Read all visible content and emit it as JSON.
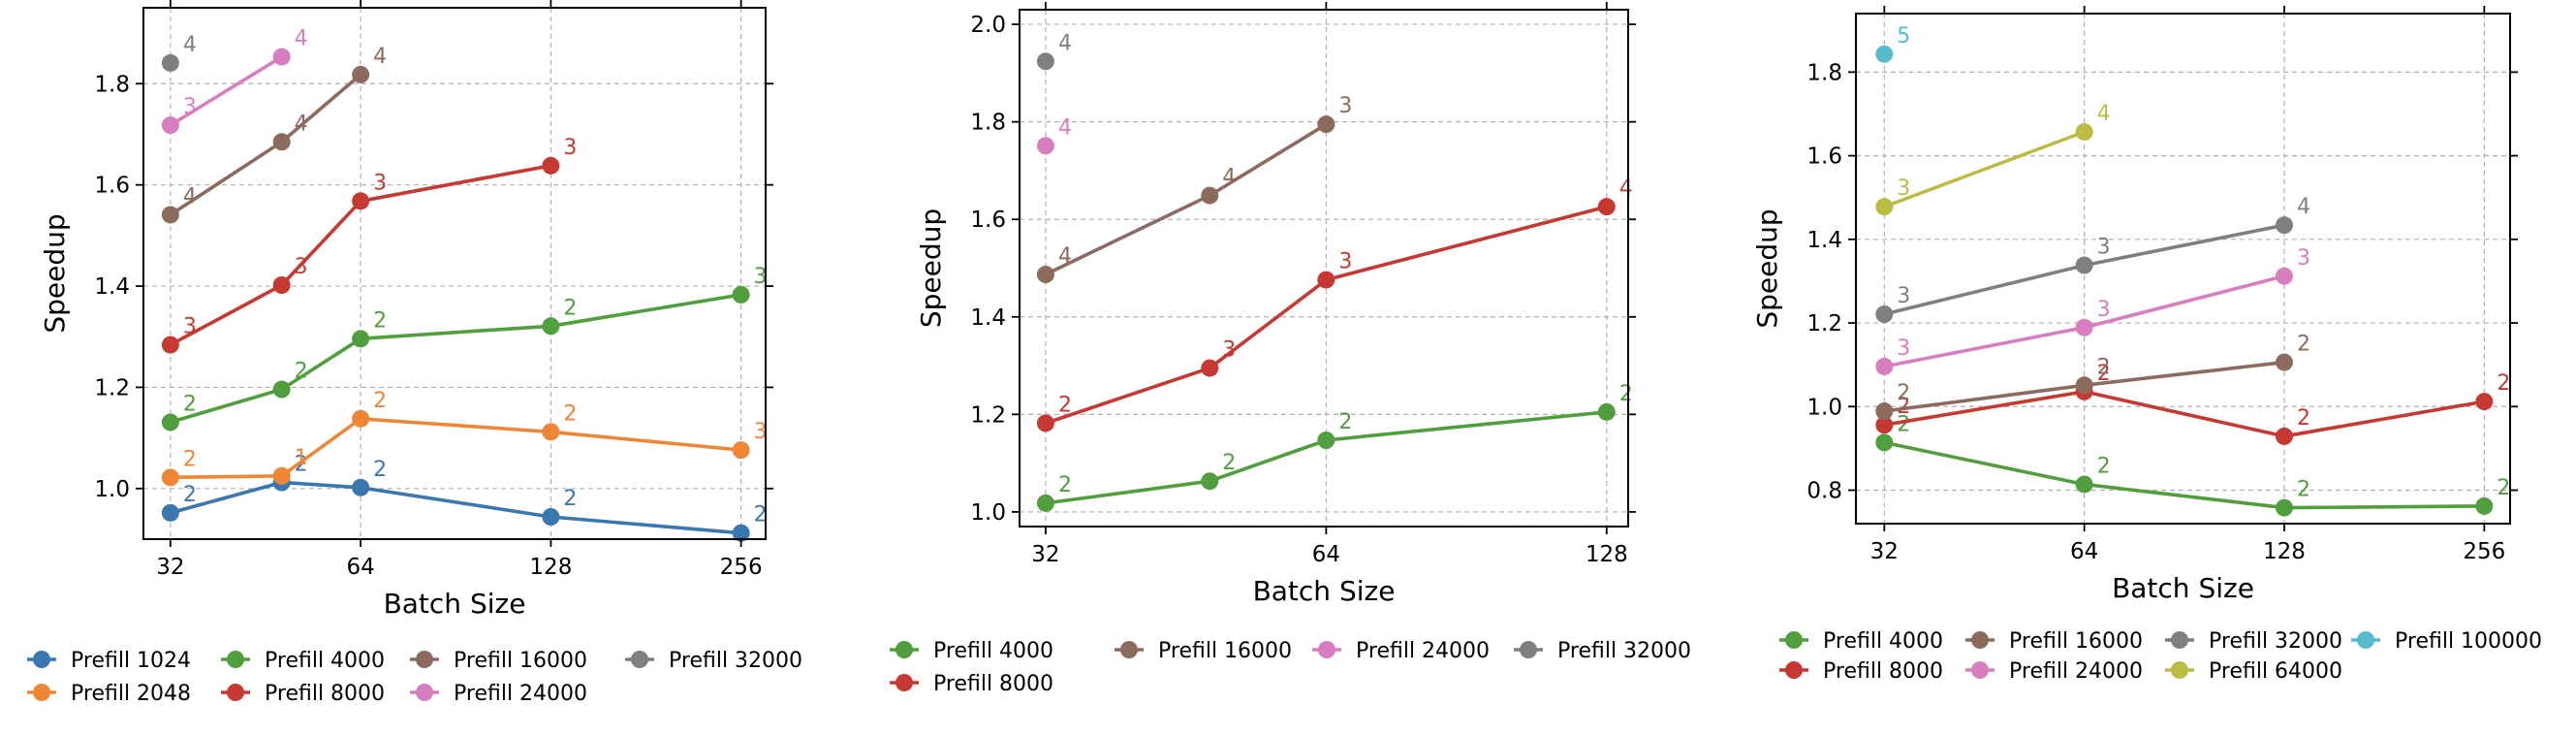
{
  "colors": {
    "prefill_1024": "#3a76af",
    "prefill_2048": "#ef8636",
    "prefill_4000": "#519e3e",
    "prefill_8000": "#c53932",
    "prefill_16000": "#8d6a5e",
    "prefill_24000": "#d67ec0",
    "prefill_32000": "#7f7f7f",
    "prefill_64000": "#bcbc45",
    "prefill_100000": "#58bbcc"
  },
  "chart_data": [
    {
      "type": "line",
      "xscale": "log2",
      "xlabel": "Batch Size",
      "ylabel": "Speedup",
      "xticks": [
        "32",
        "64",
        "128",
        "256"
      ],
      "yticks": [
        "1.0",
        "1.2",
        "1.4",
        "1.6",
        "1.8"
      ],
      "xlim": [
        29,
        280
      ],
      "ylim": [
        0.9,
        1.95
      ],
      "grid": true,
      "legend_position": "bottom",
      "series": [
        {
          "name": "Prefill 1024",
          "color_key": "prefill_1024",
          "points": [
            {
              "x": 32,
              "y": 0.952,
              "label": "2"
            },
            {
              "x": 48,
              "y": 1.012,
              "label": "2"
            },
            {
              "x": 64,
              "y": 1.002,
              "label": "2"
            },
            {
              "x": 128,
              "y": 0.944,
              "label": "2"
            },
            {
              "x": 256,
              "y": 0.912,
              "label": "2"
            }
          ]
        },
        {
          "name": "Prefill 2048",
          "color_key": "prefill_2048",
          "points": [
            {
              "x": 32,
              "y": 1.022,
              "label": "2"
            },
            {
              "x": 48,
              "y": 1.025,
              "label": "1"
            },
            {
              "x": 64,
              "y": 1.138,
              "label": "2"
            },
            {
              "x": 128,
              "y": 1.112,
              "label": "2"
            },
            {
              "x": 256,
              "y": 1.076,
              "label": "3"
            }
          ]
        },
        {
          "name": "Prefill 4000",
          "color_key": "prefill_4000",
          "points": [
            {
              "x": 32,
              "y": 1.131,
              "label": "2"
            },
            {
              "x": 48,
              "y": 1.196,
              "label": "2"
            },
            {
              "x": 64,
              "y": 1.296,
              "label": "2"
            },
            {
              "x": 128,
              "y": 1.321,
              "label": "2"
            },
            {
              "x": 256,
              "y": 1.383,
              "label": "3"
            }
          ]
        },
        {
          "name": "Prefill 8000",
          "color_key": "prefill_8000",
          "points": [
            {
              "x": 32,
              "y": 1.284,
              "label": "3"
            },
            {
              "x": 48,
              "y": 1.402,
              "label": "3"
            },
            {
              "x": 64,
              "y": 1.568,
              "label": "3"
            },
            {
              "x": 128,
              "y": 1.638,
              "label": "3"
            }
          ]
        },
        {
          "name": "Prefill 16000",
          "color_key": "prefill_16000",
          "points": [
            {
              "x": 32,
              "y": 1.541,
              "label": "4"
            },
            {
              "x": 48,
              "y": 1.685,
              "label": "4"
            },
            {
              "x": 64,
              "y": 1.818,
              "label": "4"
            }
          ]
        },
        {
          "name": "Prefill 24000",
          "color_key": "prefill_24000",
          "points": [
            {
              "x": 32,
              "y": 1.718,
              "label": "3"
            },
            {
              "x": 48,
              "y": 1.853,
              "label": "4"
            }
          ]
        },
        {
          "name": "Prefill 32000",
          "color_key": "prefill_32000",
          "points": [
            {
              "x": 32,
              "y": 1.841,
              "label": "4"
            }
          ]
        }
      ]
    },
    {
      "type": "line",
      "xscale": "log2",
      "xlabel": "Batch Size",
      "ylabel": "Speedup",
      "xticks": [
        "32",
        "64",
        "128"
      ],
      "yticks": [
        "1.0",
        "1.2",
        "1.4",
        "1.6",
        "1.8",
        "2.0"
      ],
      "xlim": [
        30,
        135
      ],
      "ylim": [
        0.97,
        2.03
      ],
      "grid": true,
      "legend_position": "bottom",
      "series": [
        {
          "name": "Prefill 4000",
          "color_key": "prefill_4000",
          "points": [
            {
              "x": 32,
              "y": 1.018,
              "label": "2"
            },
            {
              "x": 48,
              "y": 1.063,
              "label": "2"
            },
            {
              "x": 64,
              "y": 1.147,
              "label": "2"
            },
            {
              "x": 128,
              "y": 1.205,
              "label": "2"
            }
          ]
        },
        {
          "name": "Prefill 16000",
          "color_key": "prefill_16000",
          "points": [
            {
              "x": 32,
              "y": 1.487,
              "label": "4"
            },
            {
              "x": 48,
              "y": 1.649,
              "label": "4"
            },
            {
              "x": 64,
              "y": 1.795,
              "label": "3"
            }
          ]
        },
        {
          "name": "Prefill 24000",
          "color_key": "prefill_24000",
          "points": [
            {
              "x": 32,
              "y": 1.751,
              "label": "4"
            }
          ]
        },
        {
          "name": "Prefill 32000",
          "color_key": "prefill_32000",
          "points": [
            {
              "x": 32,
              "y": 1.924,
              "label": "4"
            }
          ]
        },
        {
          "name": "Prefill 8000",
          "color_key": "prefill_8000",
          "points": [
            {
              "x": 32,
              "y": 1.182,
              "label": "2"
            },
            {
              "x": 48,
              "y": 1.295,
              "label": "3"
            },
            {
              "x": 64,
              "y": 1.476,
              "label": "3"
            },
            {
              "x": 128,
              "y": 1.626,
              "label": "4"
            }
          ]
        }
      ]
    },
    {
      "type": "line",
      "xscale": "log2",
      "xlabel": "Batch Size",
      "ylabel": "Speedup",
      "xticks": [
        "32",
        "64",
        "128",
        "256"
      ],
      "yticks": [
        "0.8",
        "1.0",
        "1.2",
        "1.4",
        "1.6",
        "1.8"
      ],
      "xlim": [
        29,
        280
      ],
      "ylim": [
        0.72,
        1.94
      ],
      "grid": true,
      "legend_position": "bottom",
      "series": [
        {
          "name": "Prefill 4000",
          "color_key": "prefill_4000",
          "points": [
            {
              "x": 32,
              "y": 0.914,
              "label": "2"
            },
            {
              "x": 64,
              "y": 0.814,
              "label": "2"
            },
            {
              "x": 128,
              "y": 0.758,
              "label": "2"
            },
            {
              "x": 256,
              "y": 0.762,
              "label": "2"
            }
          ]
        },
        {
          "name": "Prefill 8000",
          "color_key": "prefill_8000",
          "points": [
            {
              "x": 32,
              "y": 0.956,
              "label": "2"
            },
            {
              "x": 64,
              "y": 1.036,
              "label": "2"
            },
            {
              "x": 128,
              "y": 0.929,
              "label": "2"
            },
            {
              "x": 256,
              "y": 1.012,
              "label": "2"
            }
          ]
        },
        {
          "name": "Prefill 16000",
          "color_key": "prefill_16000",
          "points": [
            {
              "x": 32,
              "y": 0.989,
              "label": "2"
            },
            {
              "x": 64,
              "y": 1.051,
              "label": "2"
            },
            {
              "x": 128,
              "y": 1.106,
              "label": "2"
            }
          ]
        },
        {
          "name": "Prefill 24000",
          "color_key": "prefill_24000",
          "points": [
            {
              "x": 32,
              "y": 1.096,
              "label": "3"
            },
            {
              "x": 64,
              "y": 1.189,
              "label": "3"
            },
            {
              "x": 128,
              "y": 1.312,
              "label": "3"
            }
          ]
        },
        {
          "name": "Prefill 32000",
          "color_key": "prefill_32000",
          "points": [
            {
              "x": 32,
              "y": 1.221,
              "label": "3"
            },
            {
              "x": 64,
              "y": 1.338,
              "label": "3"
            },
            {
              "x": 128,
              "y": 1.434,
              "label": "4"
            }
          ]
        },
        {
          "name": "Prefill 64000",
          "color_key": "prefill_64000",
          "points": [
            {
              "x": 32,
              "y": 1.478,
              "label": "3"
            },
            {
              "x": 64,
              "y": 1.657,
              "label": "4"
            }
          ]
        },
        {
          "name": "Prefill 100000",
          "color_key": "prefill_100000",
          "points": [
            {
              "x": 32,
              "y": 1.843,
              "label": "5"
            }
          ]
        }
      ]
    }
  ],
  "legends": [
    [
      [
        "Prefill 1024",
        "Prefill 4000",
        "Prefill 16000",
        "Prefill 32000"
      ],
      [
        "Prefill 2048",
        "Prefill 8000",
        "Prefill 24000"
      ]
    ],
    [
      [
        "Prefill 4000",
        "Prefill 16000",
        "Prefill 24000",
        "Prefill 32000"
      ],
      [
        "Prefill 8000"
      ]
    ],
    [
      [
        "Prefill 4000",
        "Prefill 16000",
        "Prefill 32000",
        "Prefill 100000"
      ],
      [
        "Prefill 8000",
        "Prefill 24000",
        "Prefill 64000"
      ]
    ]
  ]
}
